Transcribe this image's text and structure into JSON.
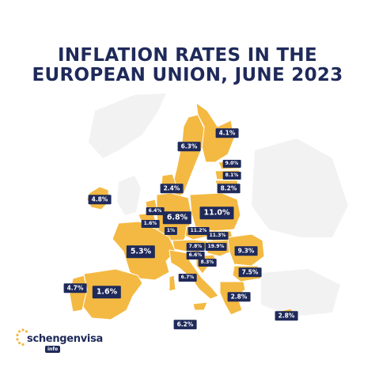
{
  "title_line1": "INFLATION RATES IN THE",
  "title_line2": "EUROPEAN UNION, JUNE 2023",
  "colors": {
    "title": "#1f2a5a",
    "land_eu": "#f4b942",
    "land_other": "#f2f2f2",
    "border": "#ffffff",
    "label_bg": "#1f2a5a",
    "label_text": "#ffffff"
  },
  "labels": {
    "finland": "4.1%",
    "sweden": "6.3%",
    "estonia": "9.0%",
    "latvia": "8.1%",
    "lithuania": "8.2%",
    "denmark": "2.4%",
    "ireland": "4.8%",
    "netherlands": "6.4%",
    "germany": "6.8%",
    "poland": "11.0%",
    "belgium": "1.6%",
    "luxembourg": "1%",
    "czechia": "11.2%",
    "slovakia": "11.3%",
    "france": "5.3%",
    "austria": "7.8%",
    "hungary": "19.9%",
    "romania": "9.3%",
    "slovenia": "6.6%",
    "croatia": "8.3%",
    "italy": "6.7%",
    "bulgaria": "7.5%",
    "portugal": "4.7%",
    "spain": "1.6%",
    "greece": "2.8%",
    "malta": "6.2%",
    "cyprus": "2.8%"
  },
  "logo": {
    "name": "schengenvisa",
    "badge": "info"
  }
}
